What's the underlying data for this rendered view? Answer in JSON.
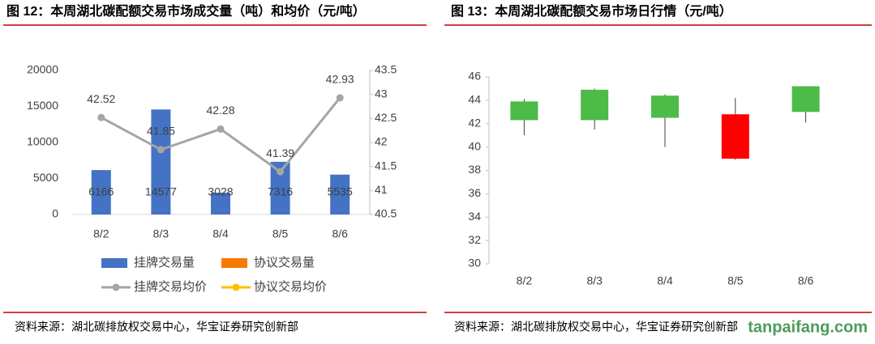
{
  "chart_data": [
    {
      "type": "bar-line",
      "title": "图 12：本周湖北碳配额交易市场成交量（吨）和均价（元/吨）",
      "source": "资料来源：湖北碳排放权交易中心，华宝证券研究创新部",
      "categories": [
        "8/2",
        "8/3",
        "8/4",
        "8/5",
        "8/6"
      ],
      "series": [
        {
          "name": "挂牌交易量",
          "kind": "bar",
          "color": "#4472c4",
          "values": [
            6166,
            14577,
            3028,
            7316,
            5535
          ]
        },
        {
          "name": "协议交易量",
          "kind": "bar",
          "color": "#f57c00",
          "values": [
            null,
            null,
            null,
            null,
            null
          ]
        },
        {
          "name": "挂牌交易均价",
          "kind": "line",
          "axis": "y2",
          "color": "#a5a5a5",
          "values": [
            42.52,
            41.85,
            42.28,
            41.39,
            42.93
          ]
        },
        {
          "name": "协议交易均价",
          "kind": "line",
          "axis": "y2",
          "color": "#ffc000",
          "values": [
            null,
            null,
            null,
            null,
            null
          ]
        }
      ],
      "ylim": [
        0,
        20000
      ],
      "yticks": [
        0,
        5000,
        10000,
        15000,
        20000
      ],
      "y2lim": [
        40.5,
        43.5
      ],
      "y2ticks": [
        40.5,
        41,
        41.5,
        42,
        42.5,
        43,
        43.5
      ],
      "legend": "bottom"
    },
    {
      "type": "candlestick",
      "title": "图 13：本周湖北碳配额交易市场日行情（元/吨）",
      "source": "资料来源：湖北碳排放权交易中心，华宝证券研究创新部",
      "watermark": "tanpaifang.com",
      "categories": [
        "8/2",
        "8/3",
        "8/4",
        "8/5",
        "8/6"
      ],
      "open": [
        42.3,
        42.3,
        42.5,
        42.8,
        43.0
      ],
      "high": [
        44.1,
        45.0,
        44.5,
        44.2,
        45.2
      ],
      "low": [
        41.0,
        41.5,
        40.0,
        38.9,
        42.1
      ],
      "close": [
        43.9,
        44.9,
        44.4,
        39.0,
        45.2
      ],
      "up_color": "#4cbb47",
      "down_color": "#ff0000",
      "ylim": [
        30,
        46
      ],
      "yticks": [
        30,
        32,
        34,
        36,
        38,
        40,
        42,
        44,
        46
      ]
    }
  ]
}
